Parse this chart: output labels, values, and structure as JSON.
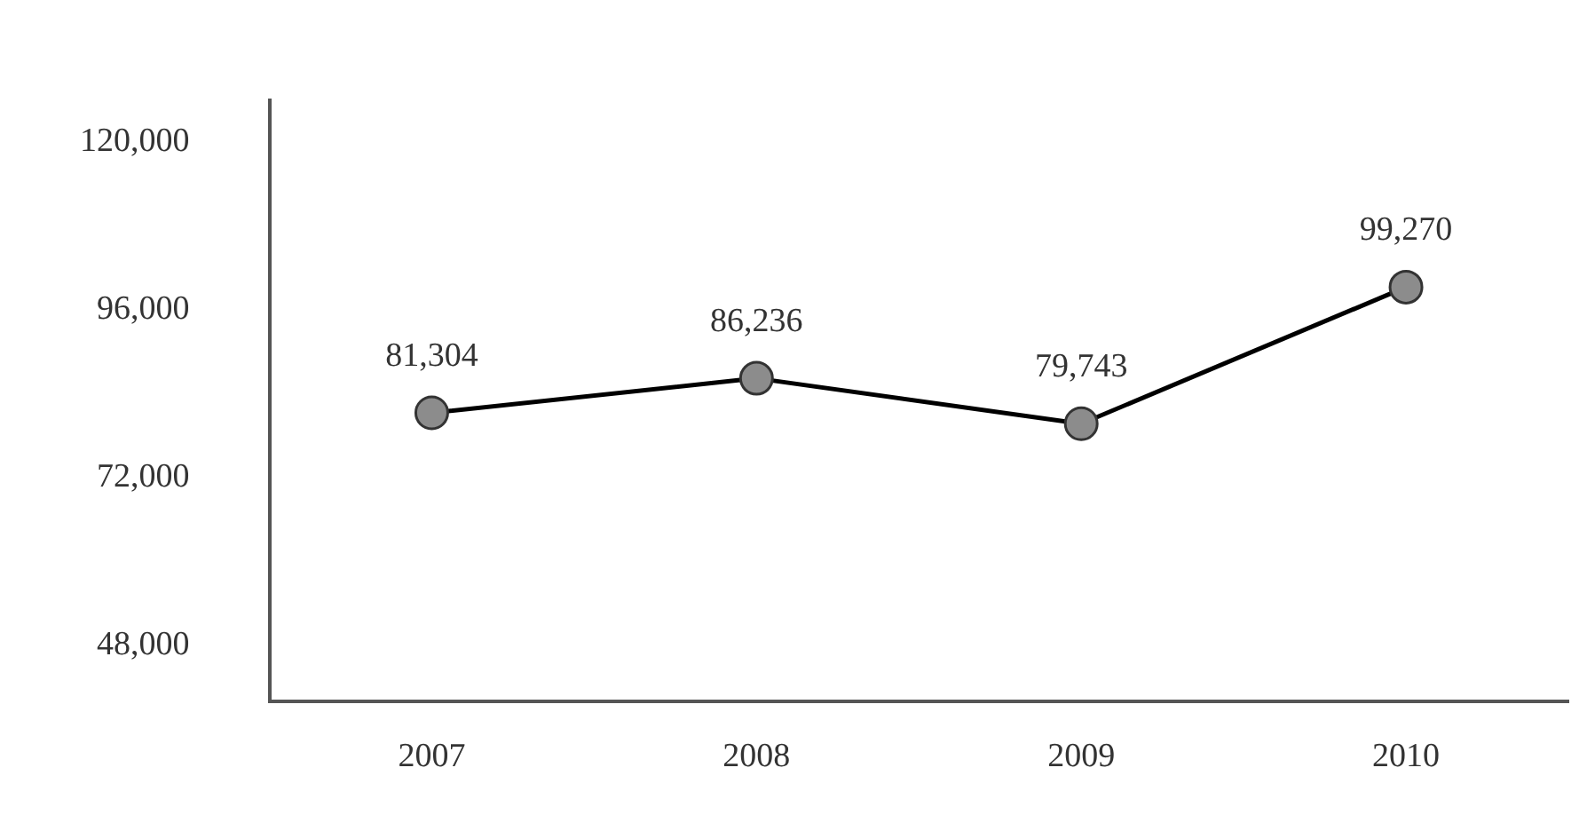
{
  "chart_data": {
    "type": "line",
    "categories": [
      "2007",
      "2008",
      "2009",
      "2010"
    ],
    "series": [
      {
        "color": "#000000",
        "values": [
          81304,
          86236,
          79743,
          99270
        ],
        "value_labels": [
          "81,304",
          "86,236",
          "79,743",
          "99,270"
        ]
      }
    ],
    "ylim": [
      40000,
      126000
    ],
    "yticks": [
      {
        "value": 48000,
        "label": "48,000"
      },
      {
        "value": 72000,
        "label": "72,000"
      },
      {
        "value": 96000,
        "label": "96,000"
      },
      {
        "value": 120000,
        "label": "120,000"
      }
    ],
    "grid": false,
    "legend": false,
    "marker": "circle",
    "line_style": "solid"
  }
}
